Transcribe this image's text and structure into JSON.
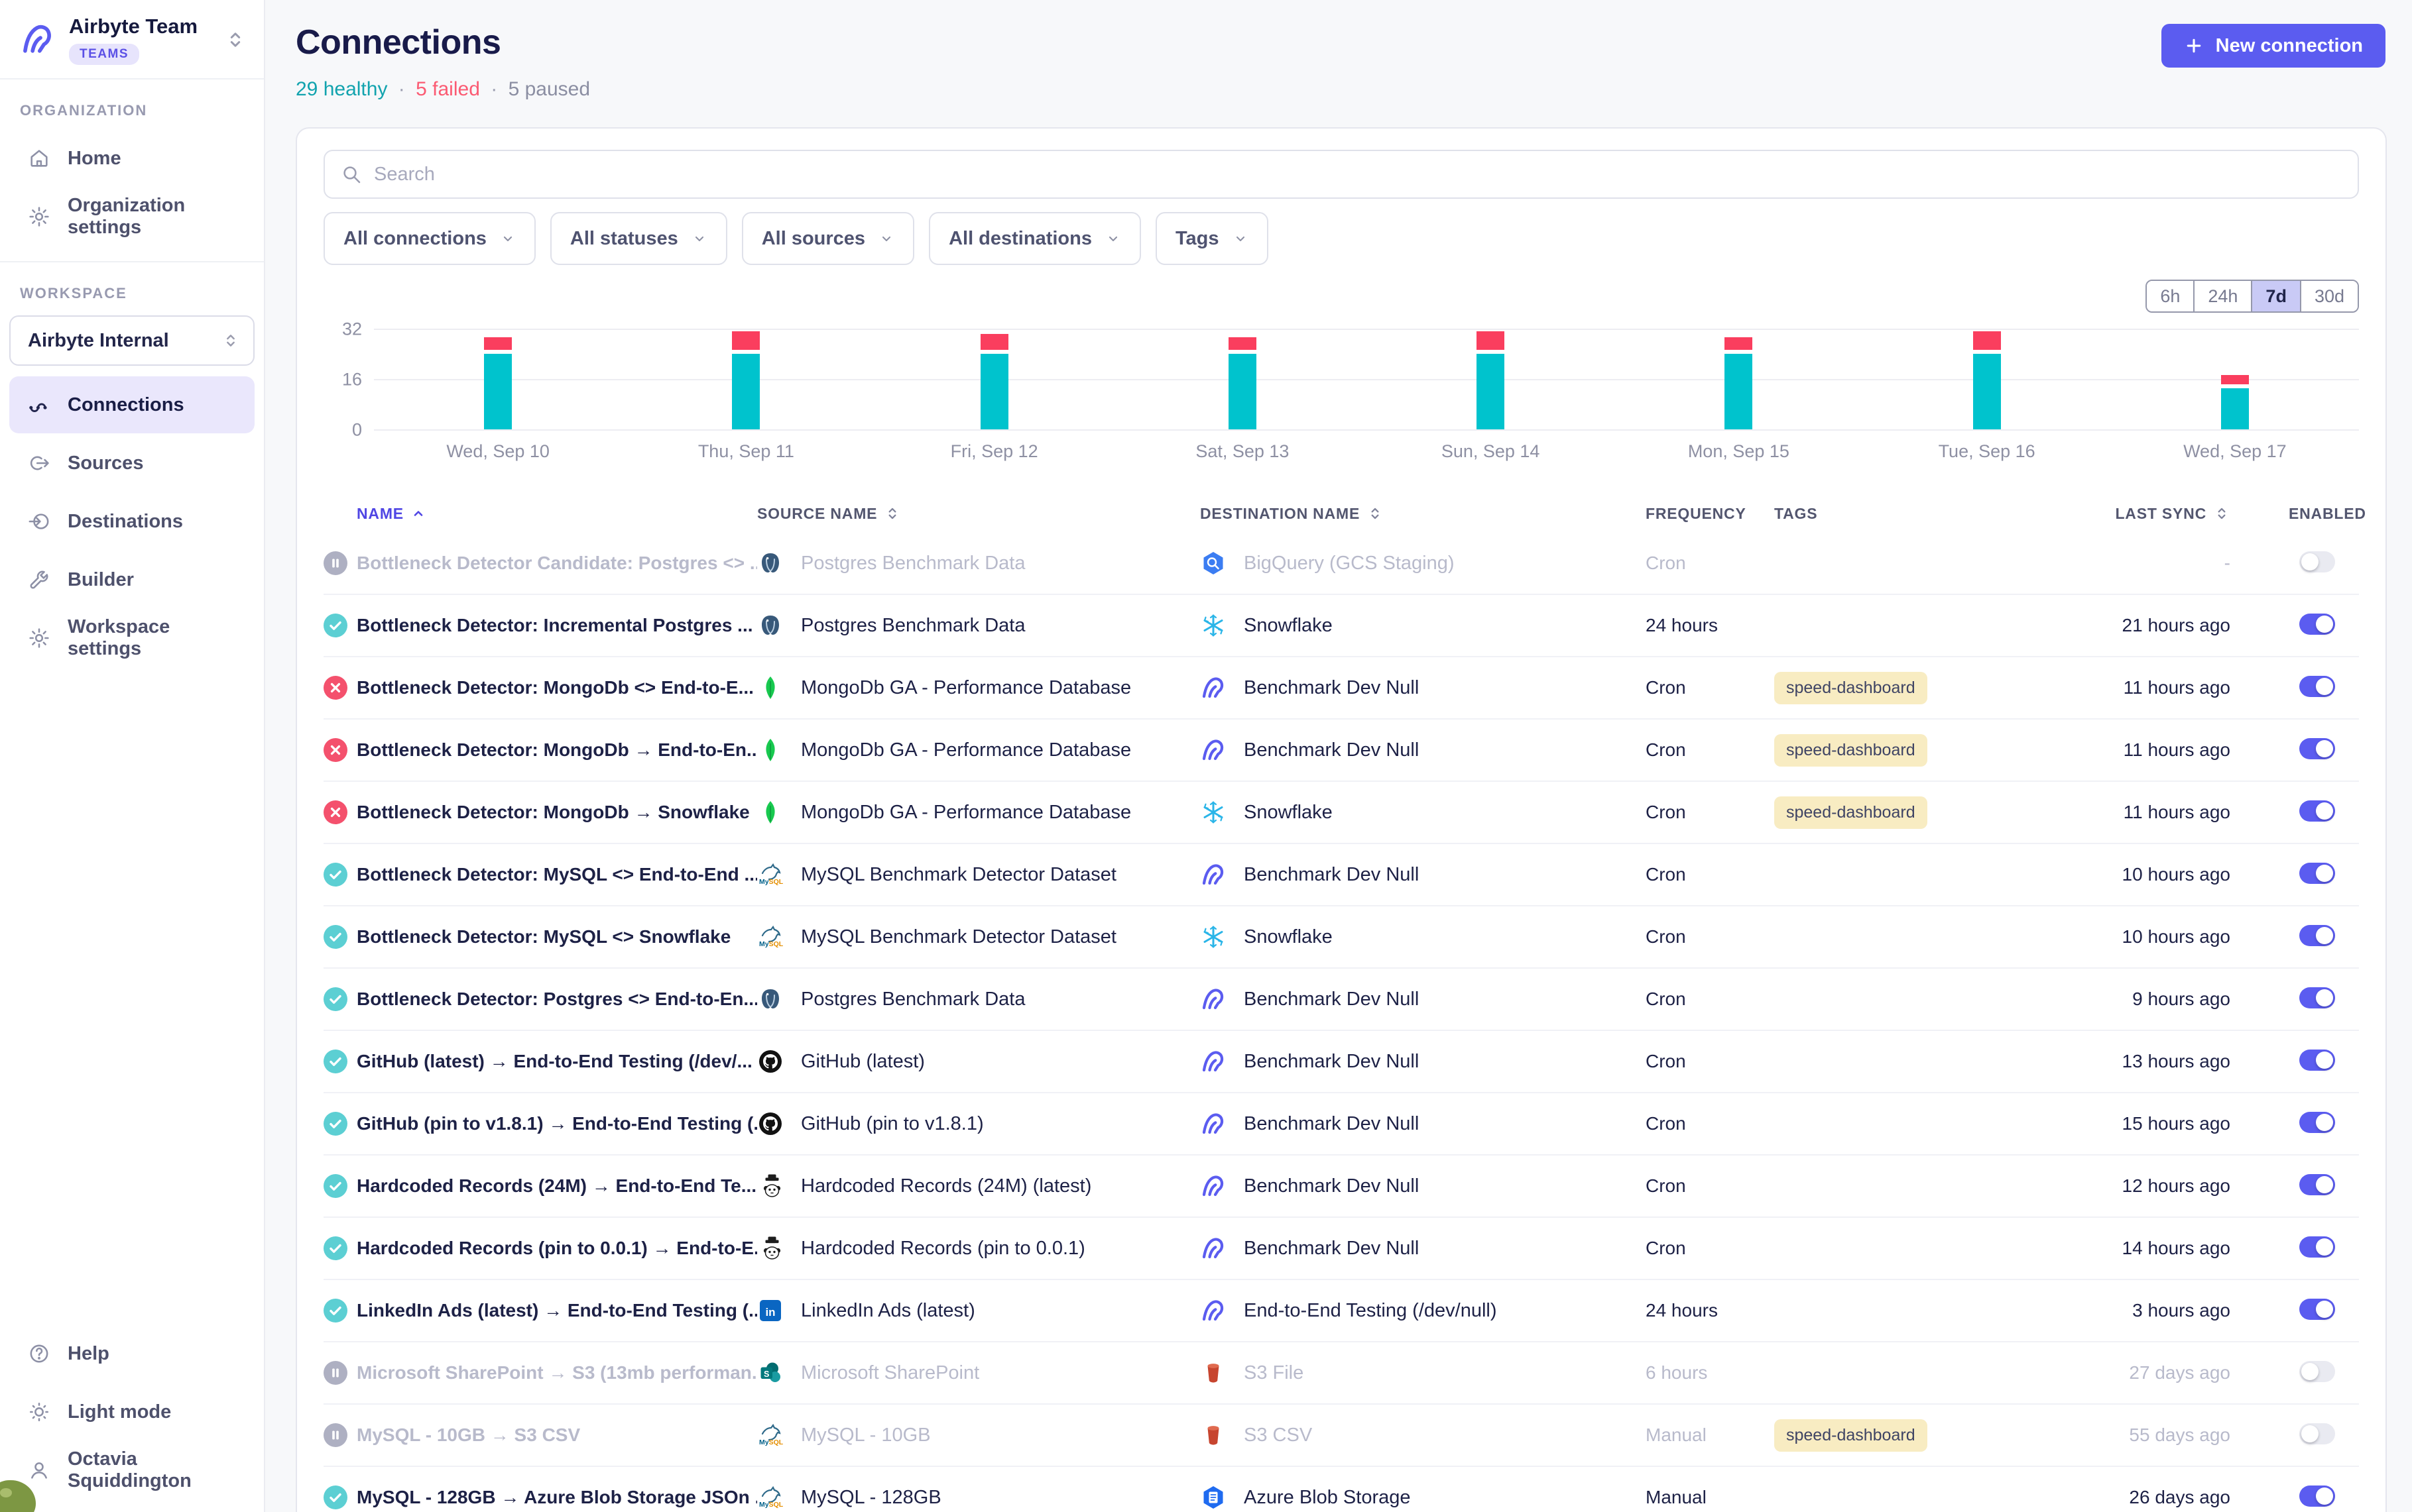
{
  "sidebar": {
    "org": {
      "name": "Airbyte Team",
      "badge": "TEAMS",
      "logo_icon": "airbyte-logo"
    },
    "sections": {
      "organization": {
        "label": "ORGANIZATION",
        "items": [
          {
            "id": "home",
            "label": "Home",
            "icon": "home-icon"
          },
          {
            "id": "organization-settings",
            "label": "Organization settings",
            "icon": "gear-icon"
          }
        ]
      },
      "workspace": {
        "label": "WORKSPACE",
        "selector": "Airbyte Internal",
        "items": [
          {
            "id": "connections",
            "label": "Connections",
            "icon": "connections-icon",
            "active": true
          },
          {
            "id": "sources",
            "label": "Sources",
            "icon": "sources-icon"
          },
          {
            "id": "destinations",
            "label": "Destinations",
            "icon": "destinations-icon"
          },
          {
            "id": "builder",
            "label": "Builder",
            "icon": "builder-icon"
          },
          {
            "id": "workspace-settings",
            "label": "Workspace settings",
            "icon": "gear-icon"
          }
        ]
      }
    },
    "footer": [
      {
        "id": "help",
        "label": "Help",
        "icon": "help-icon"
      },
      {
        "id": "light-mode",
        "label": "Light mode",
        "icon": "sun-icon"
      },
      {
        "id": "user",
        "label": "Octavia Squiddington",
        "icon": "user-icon"
      }
    ]
  },
  "header": {
    "title": "Connections",
    "summary": {
      "healthy": "29 healthy",
      "failed": "5 failed",
      "paused": "5 paused",
      "separator": "·"
    },
    "new_connection": "New connection"
  },
  "toolbar": {
    "search_placeholder": "Search",
    "filters": [
      "All connections",
      "All statuses",
      "All sources",
      "All destinations",
      "Tags"
    ]
  },
  "time_range": {
    "options": [
      "6h",
      "24h",
      "7d",
      "30d"
    ],
    "selected": "7d"
  },
  "chart_data": {
    "type": "bar",
    "stacked": true,
    "categories": [
      "Wed, Sep 10",
      "Thu, Sep 11",
      "Fri, Sep 12",
      "Sat, Sep 13",
      "Sun, Sep 14",
      "Mon, Sep 15",
      "Tue, Sep 16",
      "Wed, Sep 17"
    ],
    "series": [
      {
        "name": "succeeded",
        "color": "#00c3cd",
        "values": [
          24,
          24,
          24,
          24,
          24,
          24,
          24,
          13
        ]
      },
      {
        "name": "failed",
        "color": "#fa3e5e",
        "values": [
          4,
          6,
          5,
          4,
          6,
          4,
          6,
          3
        ]
      }
    ],
    "title": "",
    "xlabel": "",
    "ylabel": "",
    "ylim": [
      0,
      32
    ],
    "yticks": [
      0,
      16,
      32
    ],
    "grid": "horizontal",
    "legend": "none"
  },
  "table": {
    "columns": [
      {
        "label": "NAME",
        "sort": "asc"
      },
      {
        "label": "SOURCE NAME",
        "sort": "both"
      },
      {
        "label": "DESTINATION NAME",
        "sort": "both"
      },
      {
        "label": "FREQUENCY",
        "sort": "none"
      },
      {
        "label": "TAGS",
        "sort": "none"
      },
      {
        "label": "LAST SYNC",
        "sort": "both"
      },
      {
        "label": "ENABLED",
        "sort": "none"
      }
    ],
    "rows": [
      {
        "status": "paused",
        "name": "Bottleneck Detector Candidate: Postgres <> ...",
        "source": {
          "icon": "postgres-icon",
          "name": "Postgres Benchmark Data"
        },
        "destination": {
          "icon": "bigquery-icon",
          "name": "BigQuery (GCS Staging)"
        },
        "frequency": "Cron",
        "tags": [],
        "last_sync": "-",
        "enabled": false
      },
      {
        "status": "healthy",
        "name": "Bottleneck Detector: Incremental Postgres ...",
        "source": {
          "icon": "postgres-icon",
          "name": "Postgres Benchmark Data"
        },
        "destination": {
          "icon": "snowflake-icon",
          "name": "Snowflake"
        },
        "frequency": "24 hours",
        "tags": [],
        "last_sync": "21 hours ago",
        "enabled": true
      },
      {
        "status": "failed",
        "name": "Bottleneck Detector: MongoDb <> End-to-E...",
        "source": {
          "icon": "mongodb-icon",
          "name": "MongoDb GA - Performance Database"
        },
        "destination": {
          "icon": "airbyte-icon",
          "name": "Benchmark Dev Null"
        },
        "frequency": "Cron",
        "tags": [
          "speed-dashboard"
        ],
        "last_sync": "11 hours ago",
        "enabled": true
      },
      {
        "status": "failed",
        "name": "Bottleneck Detector: MongoDb → End-to-En...",
        "source": {
          "icon": "mongodb-icon",
          "name": "MongoDb GA - Performance Database"
        },
        "destination": {
          "icon": "airbyte-icon",
          "name": "Benchmark Dev Null"
        },
        "frequency": "Cron",
        "tags": [
          "speed-dashboard"
        ],
        "last_sync": "11 hours ago",
        "enabled": true
      },
      {
        "status": "failed",
        "name": "Bottleneck Detector: MongoDb → Snowflake",
        "source": {
          "icon": "mongodb-icon",
          "name": "MongoDb GA - Performance Database"
        },
        "destination": {
          "icon": "snowflake-icon",
          "name": "Snowflake"
        },
        "frequency": "Cron",
        "tags": [
          "speed-dashboard"
        ],
        "last_sync": "11 hours ago",
        "enabled": true
      },
      {
        "status": "healthy",
        "name": "Bottleneck Detector: MySQL <> End-to-End ...",
        "source": {
          "icon": "mysql-icon",
          "name": "MySQL Benchmark Detector Dataset"
        },
        "destination": {
          "icon": "airbyte-icon",
          "name": "Benchmark Dev Null"
        },
        "frequency": "Cron",
        "tags": [],
        "last_sync": "10 hours ago",
        "enabled": true
      },
      {
        "status": "healthy",
        "name": "Bottleneck Detector: MySQL <> Snowflake",
        "source": {
          "icon": "mysql-icon",
          "name": "MySQL Benchmark Detector Dataset"
        },
        "destination": {
          "icon": "snowflake-icon",
          "name": "Snowflake"
        },
        "frequency": "Cron",
        "tags": [],
        "last_sync": "10 hours ago",
        "enabled": true
      },
      {
        "status": "healthy",
        "name": "Bottleneck Detector: Postgres <> End-to-En...",
        "source": {
          "icon": "postgres-icon",
          "name": "Postgres Benchmark Data"
        },
        "destination": {
          "icon": "airbyte-icon",
          "name": "Benchmark Dev Null"
        },
        "frequency": "Cron",
        "tags": [],
        "last_sync": "9 hours ago",
        "enabled": true
      },
      {
        "status": "healthy",
        "name": "GitHub (latest) → End-to-End Testing (/dev/...",
        "source": {
          "icon": "github-icon",
          "name": "GitHub (latest)"
        },
        "destination": {
          "icon": "airbyte-icon",
          "name": "Benchmark Dev Null"
        },
        "frequency": "Cron",
        "tags": [],
        "last_sync": "13 hours ago",
        "enabled": true
      },
      {
        "status": "healthy",
        "name": "GitHub (pin to v1.8.1) → End-to-End Testing (...",
        "source": {
          "icon": "github-icon",
          "name": "GitHub (pin to v1.8.1)"
        },
        "destination": {
          "icon": "airbyte-icon",
          "name": "Benchmark Dev Null"
        },
        "frequency": "Cron",
        "tags": [],
        "last_sync": "15 hours ago",
        "enabled": true
      },
      {
        "status": "healthy",
        "name": "Hardcoded Records (24M) → End-to-End Te...",
        "source": {
          "icon": "hardcoded-icon",
          "name": "Hardcoded Records (24M) (latest)"
        },
        "destination": {
          "icon": "airbyte-icon",
          "name": "Benchmark Dev Null"
        },
        "frequency": "Cron",
        "tags": [],
        "last_sync": "12 hours ago",
        "enabled": true
      },
      {
        "status": "healthy",
        "name": "Hardcoded Records (pin to 0.0.1) → End-to-E...",
        "source": {
          "icon": "hardcoded-icon",
          "name": "Hardcoded Records (pin to 0.0.1)"
        },
        "destination": {
          "icon": "airbyte-icon",
          "name": "Benchmark Dev Null"
        },
        "frequency": "Cron",
        "tags": [],
        "last_sync": "14 hours ago",
        "enabled": true
      },
      {
        "status": "healthy",
        "name": "LinkedIn Ads (latest) → End-to-End Testing (...",
        "source": {
          "icon": "linkedin-icon",
          "name": "LinkedIn Ads (latest)"
        },
        "destination": {
          "icon": "airbyte-icon",
          "name": "End-to-End Testing (/dev/null)"
        },
        "frequency": "24 hours",
        "tags": [],
        "last_sync": "3 hours ago",
        "enabled": true
      },
      {
        "status": "paused",
        "name": "Microsoft SharePoint → S3 (13mb performan...",
        "source": {
          "icon": "sharepoint-icon",
          "name": "Microsoft SharePoint"
        },
        "destination": {
          "icon": "s3-icon",
          "name": "S3 File"
        },
        "frequency": "6 hours",
        "tags": [],
        "last_sync": "27 days ago",
        "enabled": false
      },
      {
        "status": "paused",
        "name": "MySQL - 10GB → S3 CSV",
        "source": {
          "icon": "mysql-icon",
          "name": "MySQL - 10GB"
        },
        "destination": {
          "icon": "s3-icon",
          "name": "S3 CSV"
        },
        "frequency": "Manual",
        "tags": [
          "speed-dashboard"
        ],
        "last_sync": "55 days ago",
        "enabled": false
      },
      {
        "status": "healthy",
        "name": "MySQL - 128GB → Azure Blob Storage JSOn ...",
        "source": {
          "icon": "mysql-icon",
          "name": "MySQL - 128GB"
        },
        "destination": {
          "icon": "azure-icon",
          "name": "Azure Blob Storage"
        },
        "frequency": "Manual",
        "tags": [],
        "last_sync": "26 days ago",
        "enabled": true
      }
    ]
  },
  "colors": {
    "accent": "#5b5cf0",
    "healthy": "#12a3ae",
    "failed": "#fb5a72",
    "paused": "#8b8ea2",
    "chart_success": "#00c3cd",
    "chart_failed": "#fa3e5e",
    "tag_bg": "#f8ecc2"
  }
}
